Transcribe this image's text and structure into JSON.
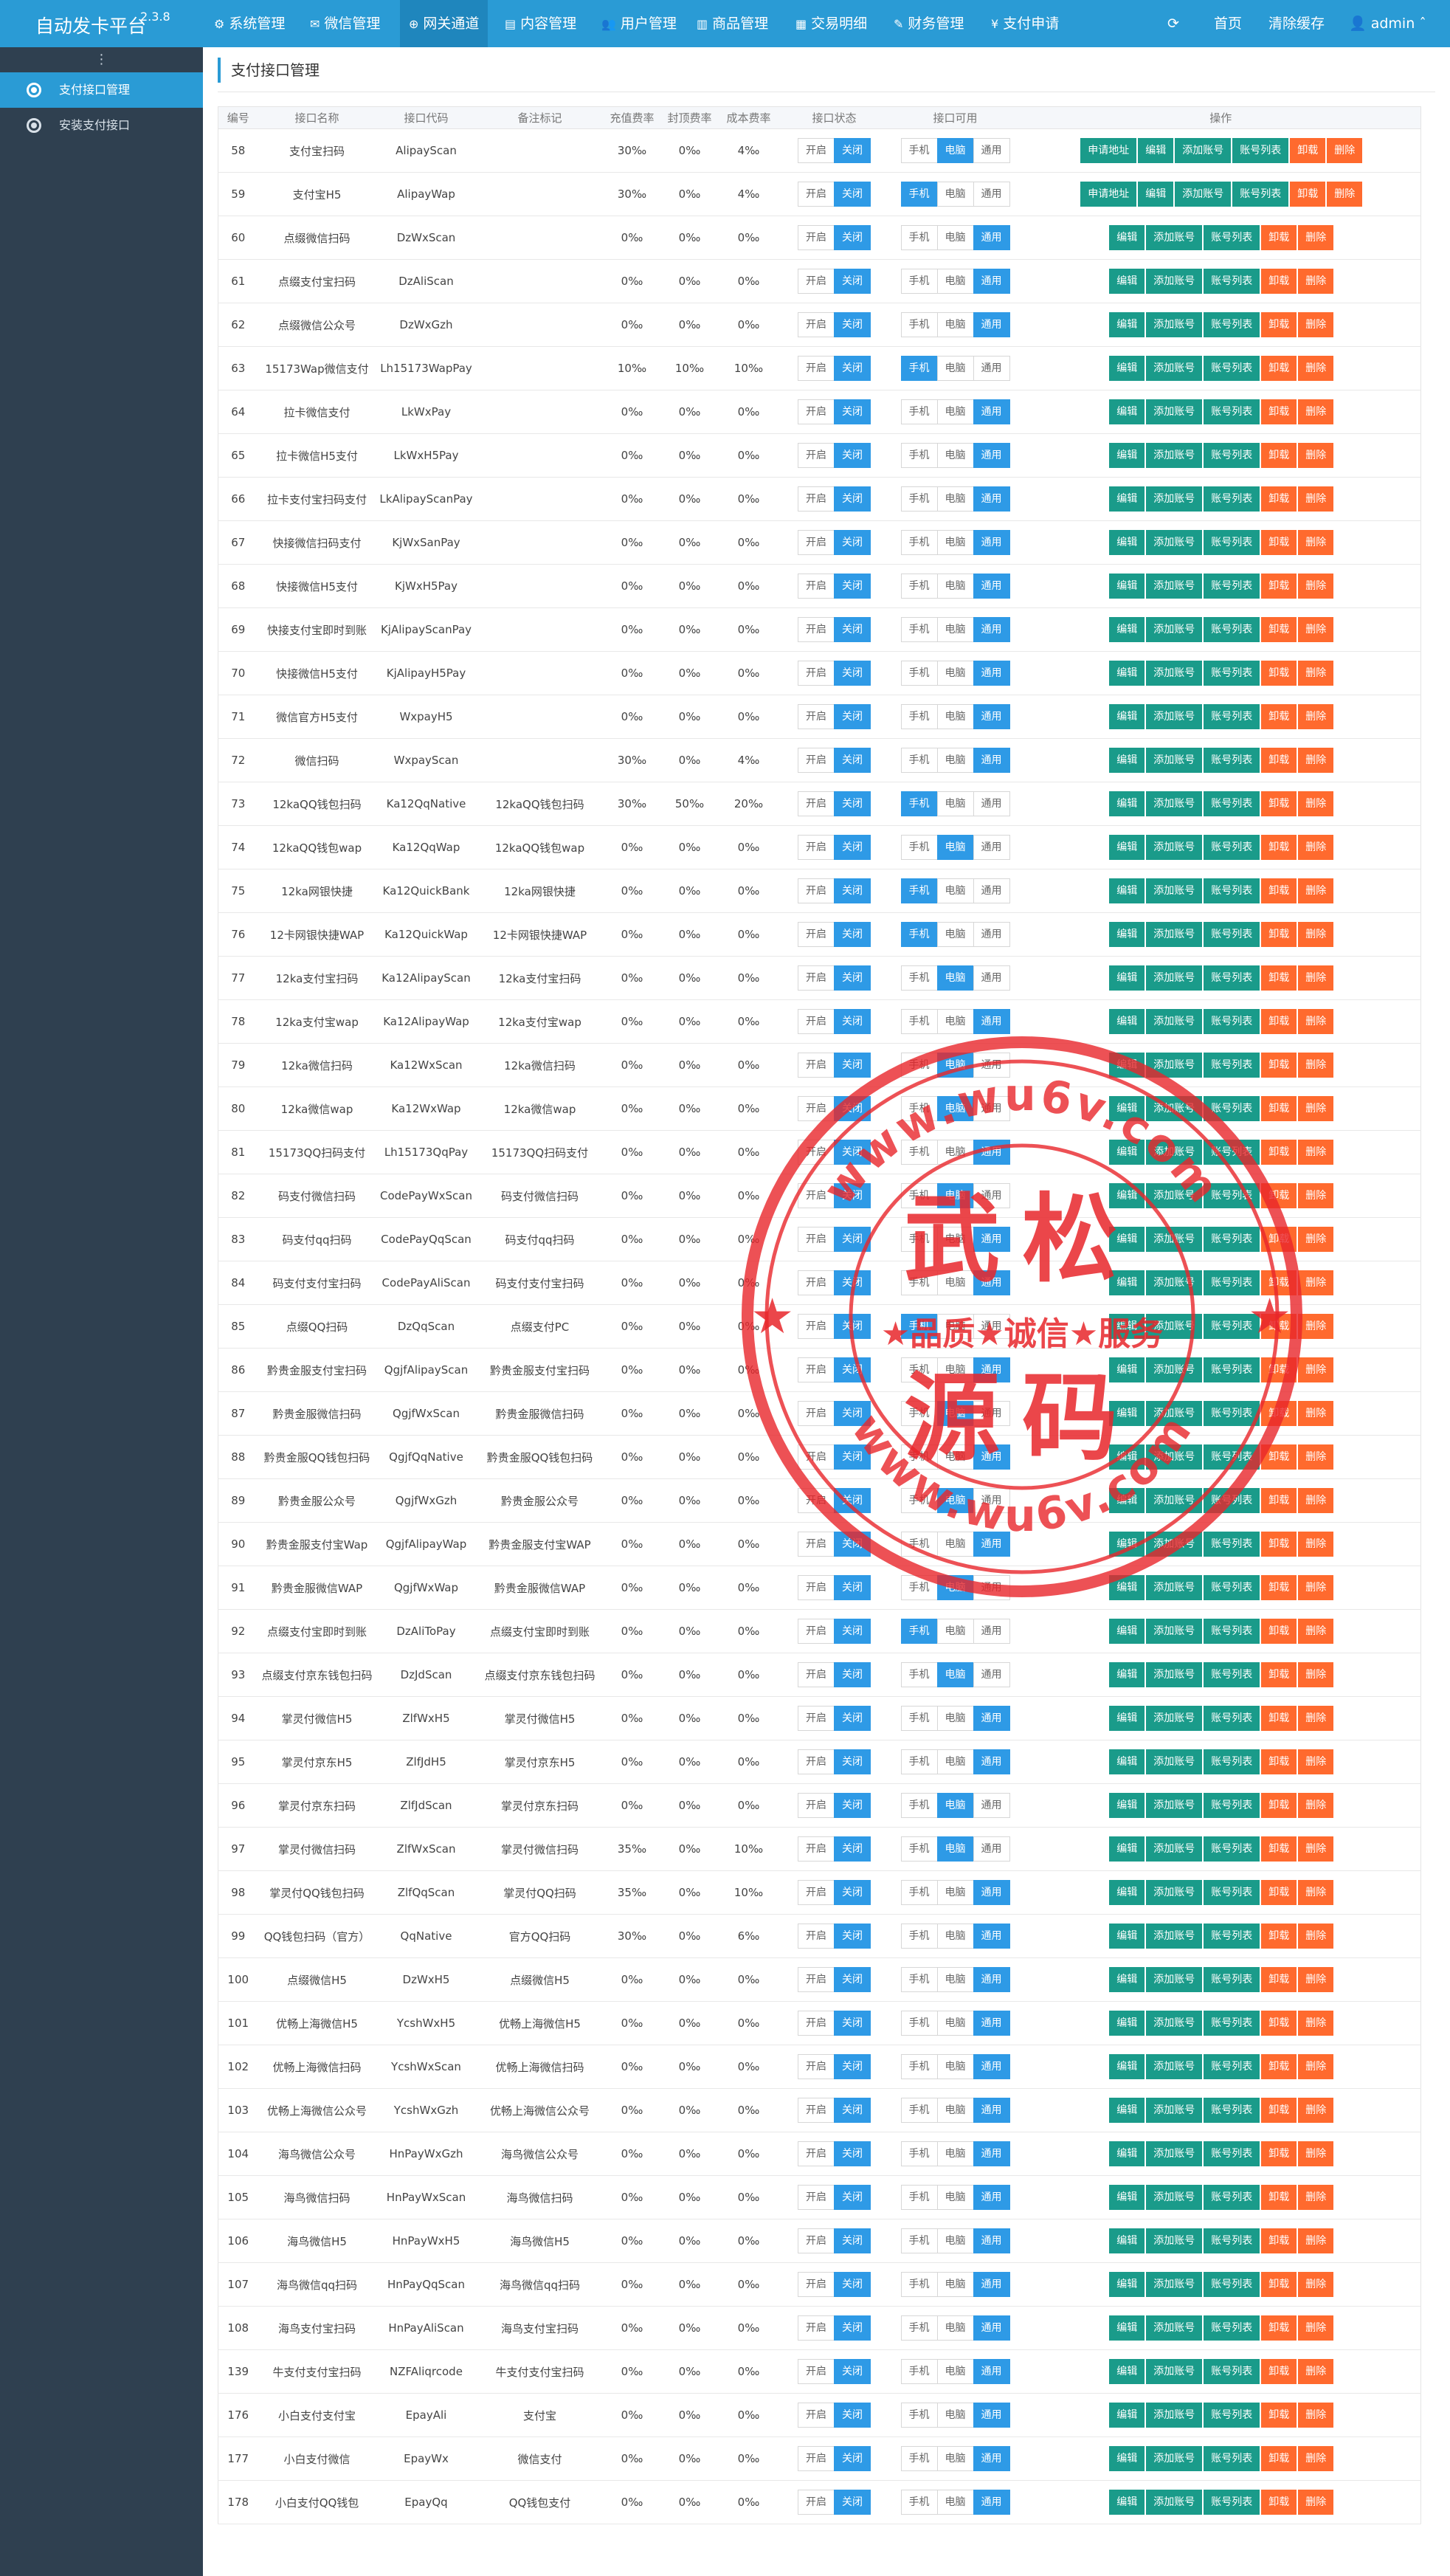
{
  "brand": {
    "title": "自动发卡平台",
    "version": "2.3.8"
  },
  "nav": [
    {
      "label": "系统管理",
      "icon": "gear-icon"
    },
    {
      "label": "微信管理",
      "icon": "wechat-icon"
    },
    {
      "label": "网关通道",
      "icon": "gateway-icon"
    },
    {
      "label": "内容管理",
      "icon": "document-icon"
    },
    {
      "label": "用户管理",
      "icon": "users-icon"
    },
    {
      "label": "商品管理",
      "icon": "bank-icon"
    },
    {
      "label": "交易明细",
      "icon": "chart-icon"
    },
    {
      "label": "财务管理",
      "icon": "finance-icon"
    },
    {
      "label": "支付申请",
      "icon": "yen-icon"
    }
  ],
  "topright": {
    "refresh_icon": "refresh-icon",
    "home": "首页",
    "clear_cache": "清除缓存",
    "user": "admin"
  },
  "sidebar": {
    "handle": "⋮",
    "items": [
      {
        "label": "支付接口管理",
        "icon": "soccer-icon"
      },
      {
        "label": "安装支付接口",
        "icon": "soccer-icon"
      }
    ]
  },
  "page": {
    "title": "支付接口管理"
  },
  "table": {
    "headers": [
      "编号",
      "接口名称",
      "接口代码",
      "备注标记",
      "充值费率",
      "封顶费率",
      "成本费率",
      "接口状态",
      "接口可用",
      "操作"
    ],
    "labels": {
      "open": "开启",
      "close": "关闭",
      "mobile": "手机",
      "pc": "电脑",
      "general": "通用",
      "apply": "申请地址",
      "edit": "编辑",
      "add_account": "添加账号",
      "account_list": "账号列表",
      "uninstall": "卸载",
      "delete": "删除"
    },
    "rows": [
      {
        "id": "58",
        "name": "支付宝扫码",
        "code": "AlipayScan",
        "remark": "",
        "rate": "30‰",
        "cap": "0‰",
        "cost": "4‰",
        "avail": "pc",
        "apply": true
      },
      {
        "id": "59",
        "name": "支付宝H5",
        "code": "AlipayWap",
        "remark": "",
        "rate": "30‰",
        "cap": "0‰",
        "cost": "4‰",
        "avail": "mobile",
        "apply": true
      },
      {
        "id": "60",
        "name": "点缀微信扫码",
        "code": "DzWxScan",
        "remark": "",
        "rate": "0‰",
        "cap": "0‰",
        "cost": "0‰",
        "avail": "general",
        "apply": false
      },
      {
        "id": "61",
        "name": "点缀支付宝扫码",
        "code": "DzAliScan",
        "remark": "",
        "rate": "0‰",
        "cap": "0‰",
        "cost": "0‰",
        "avail": "general",
        "apply": false
      },
      {
        "id": "62",
        "name": "点缀微信公众号",
        "code": "DzWxGzh",
        "remark": "",
        "rate": "0‰",
        "cap": "0‰",
        "cost": "0‰",
        "avail": "general",
        "apply": false
      },
      {
        "id": "63",
        "name": "15173Wap微信支付",
        "code": "Lh15173WapPay",
        "remark": "",
        "rate": "10‰",
        "cap": "10‰",
        "cost": "10‰",
        "avail": "mobile",
        "apply": false
      },
      {
        "id": "64",
        "name": "拉卡微信支付",
        "code": "LkWxPay",
        "remark": "",
        "rate": "0‰",
        "cap": "0‰",
        "cost": "0‰",
        "avail": "general",
        "apply": false
      },
      {
        "id": "65",
        "name": "拉卡微信H5支付",
        "code": "LkWxH5Pay",
        "remark": "",
        "rate": "0‰",
        "cap": "0‰",
        "cost": "0‰",
        "avail": "general",
        "apply": false
      },
      {
        "id": "66",
        "name": "拉卡支付宝扫码支付",
        "code": "LkAlipayScanPay",
        "remark": "",
        "rate": "0‰",
        "cap": "0‰",
        "cost": "0‰",
        "avail": "general",
        "apply": false
      },
      {
        "id": "67",
        "name": "快接微信扫码支付",
        "code": "KjWxSanPay",
        "remark": "",
        "rate": "0‰",
        "cap": "0‰",
        "cost": "0‰",
        "avail": "general",
        "apply": false
      },
      {
        "id": "68",
        "name": "快接微信H5支付",
        "code": "KjWxH5Pay",
        "remark": "",
        "rate": "0‰",
        "cap": "0‰",
        "cost": "0‰",
        "avail": "general",
        "apply": false
      },
      {
        "id": "69",
        "name": "快接支付宝即时到账",
        "code": "KjAlipayScanPay",
        "remark": "",
        "rate": "0‰",
        "cap": "0‰",
        "cost": "0‰",
        "avail": "general",
        "apply": false
      },
      {
        "id": "70",
        "name": "快接微信H5支付",
        "code": "KjAlipayH5Pay",
        "remark": "",
        "rate": "0‰",
        "cap": "0‰",
        "cost": "0‰",
        "avail": "general",
        "apply": false
      },
      {
        "id": "71",
        "name": "微信官方H5支付",
        "code": "WxpayH5",
        "remark": "",
        "rate": "0‰",
        "cap": "0‰",
        "cost": "0‰",
        "avail": "general",
        "apply": false
      },
      {
        "id": "72",
        "name": "微信扫码",
        "code": "WxpayScan",
        "remark": "",
        "rate": "30‰",
        "cap": "0‰",
        "cost": "4‰",
        "avail": "general",
        "apply": false
      },
      {
        "id": "73",
        "name": "12kaQQ钱包扫码",
        "code": "Ka12QqNative",
        "remark": "12kaQQ钱包扫码",
        "rate": "30‰",
        "cap": "50‰",
        "cost": "20‰",
        "avail": "mobile",
        "apply": false
      },
      {
        "id": "74",
        "name": "12kaQQ钱包wap",
        "code": "Ka12QqWap",
        "remark": "12kaQQ钱包wap",
        "rate": "0‰",
        "cap": "0‰",
        "cost": "0‰",
        "avail": "pc",
        "apply": false
      },
      {
        "id": "75",
        "name": "12ka网银快捷",
        "code": "Ka12QuickBank",
        "remark": "12ka网银快捷",
        "rate": "0‰",
        "cap": "0‰",
        "cost": "0‰",
        "avail": "mobile",
        "apply": false
      },
      {
        "id": "76",
        "name": "12卡网银快捷WAP",
        "code": "Ka12QuickWap",
        "remark": "12卡网银快捷WAP",
        "rate": "0‰",
        "cap": "0‰",
        "cost": "0‰",
        "avail": "mobile",
        "apply": false
      },
      {
        "id": "77",
        "name": "12ka支付宝扫码",
        "code": "Ka12AlipayScan",
        "remark": "12ka支付宝扫码",
        "rate": "0‰",
        "cap": "0‰",
        "cost": "0‰",
        "avail": "pc",
        "apply": false
      },
      {
        "id": "78",
        "name": "12ka支付宝wap",
        "code": "Ka12AlipayWap",
        "remark": "12ka支付宝wap",
        "rate": "0‰",
        "cap": "0‰",
        "cost": "0‰",
        "avail": "general",
        "apply": false
      },
      {
        "id": "79",
        "name": "12ka微信扫码",
        "code": "Ka12WxScan",
        "remark": "12ka微信扫码",
        "rate": "0‰",
        "cap": "0‰",
        "cost": "0‰",
        "avail": "pc",
        "apply": false
      },
      {
        "id": "80",
        "name": "12ka微信wap",
        "code": "Ka12WxWap",
        "remark": "12ka微信wap",
        "rate": "0‰",
        "cap": "0‰",
        "cost": "0‰",
        "avail": "pc",
        "apply": false
      },
      {
        "id": "81",
        "name": "15173QQ扫码支付",
        "code": "Lh15173QqPay",
        "remark": "15173QQ扫码支付",
        "rate": "0‰",
        "cap": "0‰",
        "cost": "0‰",
        "avail": "general",
        "apply": false
      },
      {
        "id": "82",
        "name": "码支付微信扫码",
        "code": "CodePayWxScan",
        "remark": "码支付微信扫码",
        "rate": "0‰",
        "cap": "0‰",
        "cost": "0‰",
        "avail": "pc",
        "apply": false
      },
      {
        "id": "83",
        "name": "码支付qq扫码",
        "code": "CodePayQqScan",
        "remark": "码支付qq扫码",
        "rate": "0‰",
        "cap": "0‰",
        "cost": "0‰",
        "avail": "general",
        "apply": false
      },
      {
        "id": "84",
        "name": "码支付支付宝扫码",
        "code": "CodePayAliScan",
        "remark": "码支付支付宝扫码",
        "rate": "0‰",
        "cap": "0‰",
        "cost": "0‰",
        "avail": "general",
        "apply": false
      },
      {
        "id": "85",
        "name": "点缀QQ扫码",
        "code": "DzQqScan",
        "remark": "点缀支付PC",
        "rate": "0‰",
        "cap": "0‰",
        "cost": "0‰",
        "avail": "mobile",
        "apply": false
      },
      {
        "id": "86",
        "name": "黔贵金服支付宝扫码",
        "code": "QgjfAlipayScan",
        "remark": "黔贵金服支付宝扫码",
        "rate": "0‰",
        "cap": "0‰",
        "cost": "0‰",
        "avail": "general",
        "apply": false
      },
      {
        "id": "87",
        "name": "黔贵金服微信扫码",
        "code": "QgjfWxScan",
        "remark": "黔贵金服微信扫码",
        "rate": "0‰",
        "cap": "0‰",
        "cost": "0‰",
        "avail": "pc",
        "apply": false
      },
      {
        "id": "88",
        "name": "黔贵金服QQ钱包扫码",
        "code": "QgjfQqNative",
        "remark": "黔贵金服QQ钱包扫码",
        "rate": "0‰",
        "cap": "0‰",
        "cost": "0‰",
        "avail": "general",
        "apply": false
      },
      {
        "id": "89",
        "name": "黔贵金服公众号",
        "code": "QgjfWxGzh",
        "remark": "黔贵金服公众号",
        "rate": "0‰",
        "cap": "0‰",
        "cost": "0‰",
        "avail": "pc",
        "apply": false
      },
      {
        "id": "90",
        "name": "黔贵金服支付宝Wap",
        "code": "QgjfAlipayWap",
        "remark": "黔贵金服支付宝WAP",
        "rate": "0‰",
        "cap": "0‰",
        "cost": "0‰",
        "avail": "general",
        "apply": false
      },
      {
        "id": "91",
        "name": "黔贵金服微信WAP",
        "code": "QgjfWxWap",
        "remark": "黔贵金服微信WAP",
        "rate": "0‰",
        "cap": "0‰",
        "cost": "0‰",
        "avail": "pc",
        "apply": false
      },
      {
        "id": "92",
        "name": "点缀支付宝即时到账",
        "code": "DzAliToPay",
        "remark": "点缀支付宝即时到账",
        "rate": "0‰",
        "cap": "0‰",
        "cost": "0‰",
        "avail": "mobile",
        "apply": false
      },
      {
        "id": "93",
        "name": "点缀支付京东钱包扫码",
        "code": "DzJdScan",
        "remark": "点缀支付京东钱包扫码",
        "rate": "0‰",
        "cap": "0‰",
        "cost": "0‰",
        "avail": "pc",
        "apply": false
      },
      {
        "id": "94",
        "name": "掌灵付微信H5",
        "code": "ZlfWxH5",
        "remark": "掌灵付微信H5",
        "rate": "0‰",
        "cap": "0‰",
        "cost": "0‰",
        "avail": "general",
        "apply": false
      },
      {
        "id": "95",
        "name": "掌灵付京东H5",
        "code": "ZlfJdH5",
        "remark": "掌灵付京东H5",
        "rate": "0‰",
        "cap": "0‰",
        "cost": "0‰",
        "avail": "general",
        "apply": false
      },
      {
        "id": "96",
        "name": "掌灵付京东扫码",
        "code": "ZlfJdScan",
        "remark": "掌灵付京东扫码",
        "rate": "0‰",
        "cap": "0‰",
        "cost": "0‰",
        "avail": "pc",
        "apply": false
      },
      {
        "id": "97",
        "name": "掌灵付微信扫码",
        "code": "ZlfWxScan",
        "remark": "掌灵付微信扫码",
        "rate": "35‰",
        "cap": "0‰",
        "cost": "10‰",
        "avail": "pc",
        "apply": false
      },
      {
        "id": "98",
        "name": "掌灵付QQ钱包扫码",
        "code": "ZlfQqScan",
        "remark": "掌灵付QQ扫码",
        "rate": "35‰",
        "cap": "0‰",
        "cost": "10‰",
        "avail": "general",
        "apply": false
      },
      {
        "id": "99",
        "name": "QQ钱包扫码（官方）",
        "code": "QqNative",
        "remark": "官方QQ扫码",
        "rate": "30‰",
        "cap": "0‰",
        "cost": "6‰",
        "avail": "general",
        "apply": false
      },
      {
        "id": "100",
        "name": "点缀微信H5",
        "code": "DzWxH5",
        "remark": "点缀微信H5",
        "rate": "0‰",
        "cap": "0‰",
        "cost": "0‰",
        "avail": "general",
        "apply": false
      },
      {
        "id": "101",
        "name": "优畅上海微信H5",
        "code": "YcshWxH5",
        "remark": "优畅上海微信H5",
        "rate": "0‰",
        "cap": "0‰",
        "cost": "0‰",
        "avail": "general",
        "apply": false
      },
      {
        "id": "102",
        "name": "优畅上海微信扫码",
        "code": "YcshWxScan",
        "remark": "优畅上海微信扫码",
        "rate": "0‰",
        "cap": "0‰",
        "cost": "0‰",
        "avail": "general",
        "apply": false
      },
      {
        "id": "103",
        "name": "优畅上海微信公众号",
        "code": "YcshWxGzh",
        "remark": "优畅上海微信公众号",
        "rate": "0‰",
        "cap": "0‰",
        "cost": "0‰",
        "avail": "general",
        "apply": false
      },
      {
        "id": "104",
        "name": "海鸟微信公众号",
        "code": "HnPayWxGzh",
        "remark": "海鸟微信公众号",
        "rate": "0‰",
        "cap": "0‰",
        "cost": "0‰",
        "avail": "general",
        "apply": false
      },
      {
        "id": "105",
        "name": "海鸟微信扫码",
        "code": "HnPayWxScan",
        "remark": "海鸟微信扫码",
        "rate": "0‰",
        "cap": "0‰",
        "cost": "0‰",
        "avail": "general",
        "apply": false
      },
      {
        "id": "106",
        "name": "海鸟微信H5",
        "code": "HnPayWxH5",
        "remark": "海鸟微信H5",
        "rate": "0‰",
        "cap": "0‰",
        "cost": "0‰",
        "avail": "general",
        "apply": false
      },
      {
        "id": "107",
        "name": "海鸟微信qq扫码",
        "code": "HnPayQqScan",
        "remark": "海鸟微信qq扫码",
        "rate": "0‰",
        "cap": "0‰",
        "cost": "0‰",
        "avail": "general",
        "apply": false
      },
      {
        "id": "108",
        "name": "海鸟支付宝扫码",
        "code": "HnPayAliScan",
        "remark": "海鸟支付宝扫码",
        "rate": "0‰",
        "cap": "0‰",
        "cost": "0‰",
        "avail": "general",
        "apply": false
      },
      {
        "id": "139",
        "name": "牛支付支付宝扫码",
        "code": "NZFAliqrcode",
        "remark": "牛支付支付宝扫码",
        "rate": "0‰",
        "cap": "0‰",
        "cost": "0‰",
        "avail": "general",
        "apply": false
      },
      {
        "id": "176",
        "name": "小白支付支付宝",
        "code": "EpayAli",
        "remark": "支付宝",
        "rate": "0‰",
        "cap": "0‰",
        "cost": "0‰",
        "avail": "general",
        "apply": false
      },
      {
        "id": "177",
        "name": "小白支付微信",
        "code": "EpayWx",
        "remark": "微信支付",
        "rate": "0‰",
        "cap": "0‰",
        "cost": "0‰",
        "avail": "general",
        "apply": false
      },
      {
        "id": "178",
        "name": "小白支付QQ钱包",
        "code": "EpayQq",
        "remark": "QQ钱包支付",
        "rate": "0‰",
        "cap": "0‰",
        "cost": "0‰",
        "avail": "general",
        "apply": false
      }
    ]
  },
  "stamp": {
    "color": "#e8262a",
    "url_top": "www.wu6v.com",
    "url_bottom": "www.wu6v.com",
    "line1": "武松",
    "line2": "源码",
    "motto": "★品质★诚信★服务"
  }
}
